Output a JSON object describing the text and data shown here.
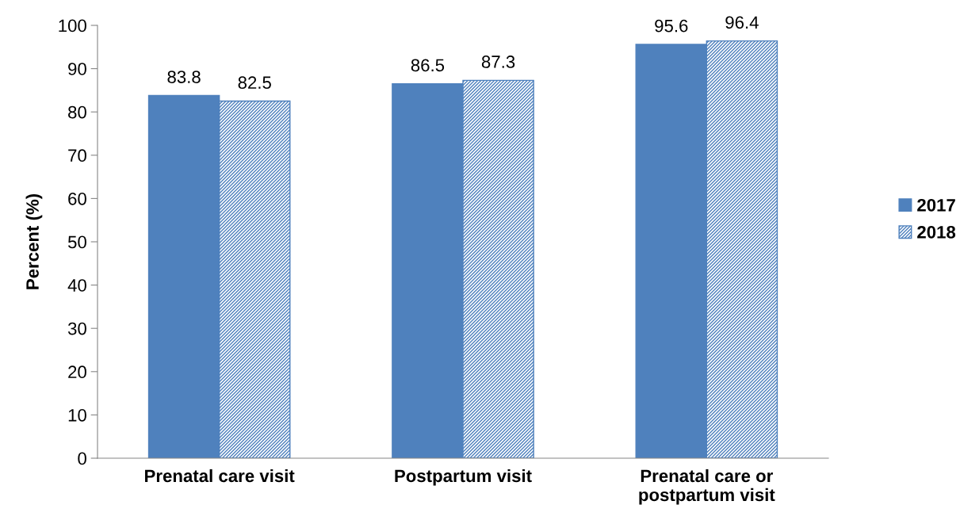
{
  "chart_data": {
    "type": "bar",
    "ylabel": "Percent (%)",
    "categories": [
      "Prenatal care visit",
      "Postpartum visit",
      "Prenatal care or\npostpartum visit"
    ],
    "series": [
      {
        "name": "2017",
        "color": "#4f81bd",
        "values": [
          83.8,
          86.5,
          95.6
        ]
      },
      {
        "name": "2018",
        "color": "#4f81bd",
        "values": [
          82.5,
          87.3,
          96.4
        ]
      }
    ],
    "ylim": [
      0,
      100
    ],
    "yticks": [
      0,
      10,
      20,
      30,
      40,
      50,
      60,
      70,
      80,
      90,
      100
    ],
    "grid": false,
    "legend": "right",
    "data_labels": true
  }
}
